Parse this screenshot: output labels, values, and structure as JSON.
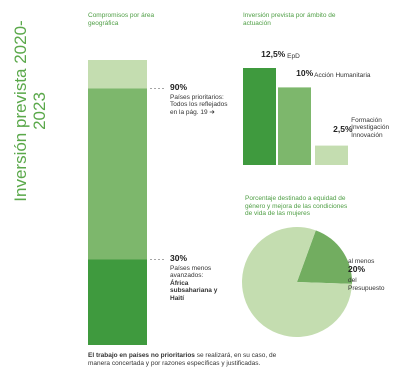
{
  "title": "Inversión prevista 2020-2023",
  "chart_data": [
    {
      "type": "stacked-bar",
      "title": "Compromisos por área geográfica",
      "ylim": [
        0,
        100
      ],
      "values": [
        30,
        60,
        10
      ],
      "colors": [
        "#3f9a3e",
        "#7db76c",
        "#c4ddb0"
      ],
      "annotations": [
        {
          "value": 90,
          "label": "90%",
          "text": "Países prioritarios: Todos los reflejados en la pág. 19 ➔"
        },
        {
          "value": 30,
          "label": "30%",
          "text": "Países menos avanzados:",
          "bold": "África subsahariana y Haití"
        }
      ]
    },
    {
      "type": "bar",
      "title": "Inversión prevista por ámbito de actuación",
      "ylim": [
        0,
        12.5
      ],
      "categories": [
        "EpD",
        "Acción Humanitaria",
        "Formación Investigación Innovación"
      ],
      "values": [
        12.5,
        10,
        2.5
      ],
      "value_labels": [
        "12,5%",
        "10%",
        "2,5%"
      ],
      "colors": [
        "#3f9a3e",
        "#7db76c",
        "#c4ddb0"
      ]
    },
    {
      "type": "pie",
      "title": "Porcentaje destinado a equidad de género y mejora de las condiciones de vida de las mujeres",
      "values": [
        20,
        80
      ],
      "value_labels": [
        "20%",
        null
      ],
      "colors": [
        "#72ad60",
        "#c4ddb0"
      ],
      "label_prefix": "al menos",
      "label_suffix": "del Presupuesto"
    }
  ],
  "footnote": {
    "bold": "El trabajo en países no prioritarios",
    "text": "se realizará, en su caso, de manera concertada y por razones específicas y justificadas."
  }
}
